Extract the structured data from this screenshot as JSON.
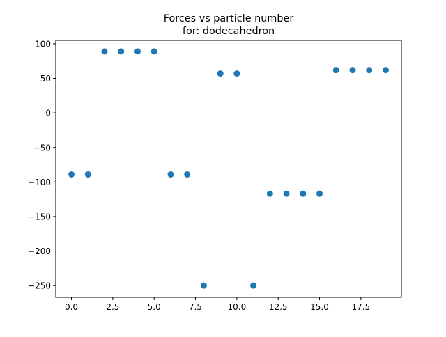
{
  "chart_data": {
    "type": "scatter",
    "title": [
      "Forces vs particle number",
      "for: dodecahedron"
    ],
    "xlabel": "",
    "ylabel": "",
    "xlim": [
      -0.95,
      19.95
    ],
    "ylim": [
      -267,
      105
    ],
    "xticks": [
      0.0,
      2.5,
      5.0,
      7.5,
      10.0,
      12.5,
      15.0,
      17.5
    ],
    "xtick_labels": [
      "0.0",
      "2.5",
      "5.0",
      "7.5",
      "10.0",
      "12.5",
      "15.0",
      "17.5"
    ],
    "yticks": [
      100,
      50,
      0,
      -50,
      -100,
      -150,
      -200,
      -250
    ],
    "ytick_labels": [
      "100",
      "50",
      "0",
      "−50",
      "−100",
      "−150",
      "−200",
      "−250"
    ],
    "grid": false,
    "marker_color": "#1f77b4",
    "series": [
      {
        "x": [
          0,
          1,
          2,
          3,
          4,
          5,
          6,
          7,
          8,
          9,
          10,
          11,
          12,
          13,
          14,
          15,
          16,
          17,
          18,
          19
        ],
        "y": [
          -89,
          -89,
          89,
          89,
          89,
          89,
          -89,
          -89,
          -250,
          57,
          57,
          -250,
          -117,
          -117,
          -117,
          -117,
          62,
          62,
          62,
          62
        ]
      }
    ]
  }
}
